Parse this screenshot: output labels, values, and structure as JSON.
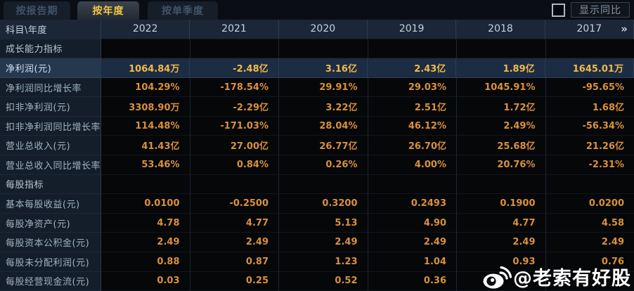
{
  "tabs": [
    {
      "label": "按报告期",
      "active": false
    },
    {
      "label": "按年度",
      "active": true
    },
    {
      "label": "按单季度",
      "active": false
    }
  ],
  "controls": {
    "show_yoy_label": "显示同比",
    "checkbox_checked": false
  },
  "table": {
    "corner_label": "科目\\年度",
    "years": [
      "2022",
      "2021",
      "2020",
      "2019",
      "2018",
      "2017"
    ],
    "more_years_icon": "»",
    "rows": [
      {
        "type": "section",
        "label": "成长能力指标",
        "values": [
          "",
          "",
          "",
          "",
          "",
          ""
        ]
      },
      {
        "type": "highlight",
        "label": "净利润(元)",
        "values": [
          "1064.84万",
          "-2.48亿",
          "3.16亿",
          "2.43亿",
          "1.89亿",
          "1645.01万"
        ]
      },
      {
        "type": "data",
        "label": "净利润同比增长率",
        "values": [
          "104.29%",
          "-178.54%",
          "29.91%",
          "29.03%",
          "1045.91%",
          "-95.65%"
        ]
      },
      {
        "type": "data",
        "label": "扣非净利润(元)",
        "values": [
          "3308.90万",
          "-2.29亿",
          "3.22亿",
          "2.51亿",
          "1.72亿",
          "1.68亿"
        ]
      },
      {
        "type": "data",
        "label": "扣非净利润同比增长率",
        "values": [
          "114.48%",
          "-171.03%",
          "28.04%",
          "46.12%",
          "2.49%",
          "-56.34%"
        ]
      },
      {
        "type": "data",
        "label": "营业总收入(元)",
        "values": [
          "41.43亿",
          "27.00亿",
          "26.77亿",
          "26.70亿",
          "25.68亿",
          "21.26亿"
        ]
      },
      {
        "type": "data",
        "label": "营业总收入同比增长率",
        "values": [
          "53.46%",
          "0.84%",
          "0.26%",
          "4.00%",
          "20.76%",
          "-2.31%"
        ]
      },
      {
        "type": "section",
        "label": "每股指标",
        "values": [
          "",
          "",
          "",
          "",
          "",
          ""
        ]
      },
      {
        "type": "data",
        "label": "基本每股收益(元)",
        "values": [
          "0.0100",
          "-0.2500",
          "0.3200",
          "0.2493",
          "0.1900",
          "0.0200"
        ]
      },
      {
        "type": "data",
        "label": "每股净资产(元)",
        "values": [
          "4.78",
          "4.77",
          "5.13",
          "4.90",
          "4.77",
          "4.58"
        ]
      },
      {
        "type": "data",
        "label": "每股资本公积金(元)",
        "values": [
          "2.49",
          "2.49",
          "2.49",
          "2.49",
          "2.49",
          "2.49"
        ]
      },
      {
        "type": "data",
        "label": "每股未分配利润(元)",
        "values": [
          "0.88",
          "0.87",
          "1.23",
          "1.04",
          "0.93",
          "0.76"
        ]
      },
      {
        "type": "data",
        "label": "每股经营现金流(元)",
        "values": [
          "0.03",
          "0.25",
          "0.52",
          "0.36",
          "",
          ""
        ]
      }
    ]
  },
  "watermark": {
    "text": "@老索有好股",
    "icon": "weibo-icon"
  },
  "colors": {
    "accent_gold": "#f5c542",
    "value_orange": "#d9913c",
    "highlight_value_gold": "#f0ba4a",
    "highlight_row_bg": "#1c2c42",
    "header_row_bg": "#1b2736",
    "label_column_bg": "#141e2b",
    "data_cell_bg": "#060709",
    "inactive_tab_text": "#41546a",
    "page_bg": "#0a0e14"
  }
}
